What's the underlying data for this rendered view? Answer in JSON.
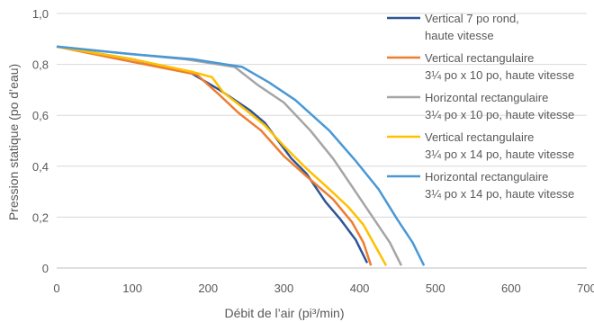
{
  "chart_data": {
    "type": "line",
    "xlabel": "Débit de l’air (pi³/min)",
    "ylabel": "Pression statique (po d’eau)",
    "xlim": [
      0,
      700
    ],
    "ylim": [
      0,
      1.0
    ],
    "x_ticks": [
      0,
      100,
      200,
      300,
      400,
      500,
      600,
      700
    ],
    "x_tick_labels": [
      "0",
      "100",
      "200",
      "300",
      "400",
      "500",
      "600",
      "700"
    ],
    "y_ticks": [
      0,
      0.2,
      0.4,
      0.6,
      0.8,
      1.0
    ],
    "y_tick_labels": [
      "0",
      "0,2",
      "0,4",
      "0,6",
      "0,8",
      "1,0"
    ],
    "grid": "horizontal",
    "legend_position": "right",
    "series": [
      {
        "name_lines": [
          "Vertical 7 po rond,",
          "haute vitesse"
        ],
        "color": "#2E5597",
        "points": [
          [
            0,
            0.87
          ],
          [
            100,
            0.82
          ],
          [
            175,
            0.77
          ],
          [
            215,
            0.7
          ],
          [
            255,
            0.62
          ],
          [
            275,
            0.57
          ],
          [
            290,
            0.51
          ],
          [
            310,
            0.43
          ],
          [
            330,
            0.37
          ],
          [
            355,
            0.26
          ],
          [
            375,
            0.19
          ],
          [
            395,
            0.11
          ],
          [
            410,
            0.02
          ]
        ]
      },
      {
        "name_lines": [
          "Vertical rectangulaire",
          "3¼ po x 10 po, haute vitesse"
        ],
        "color": "#ED7D31",
        "points": [
          [
            0,
            0.87
          ],
          [
            100,
            0.81
          ],
          [
            185,
            0.76
          ],
          [
            215,
            0.68
          ],
          [
            240,
            0.61
          ],
          [
            270,
            0.54
          ],
          [
            300,
            0.44
          ],
          [
            330,
            0.36
          ],
          [
            365,
            0.27
          ],
          [
            390,
            0.18
          ],
          [
            405,
            0.1
          ],
          [
            415,
            0.01
          ]
        ]
      },
      {
        "name_lines": [
          "Horizontal rectangulaire",
          "3¼ po x 10 po, haute vitesse"
        ],
        "color": "#A5A5A5",
        "points": [
          [
            0,
            0.87
          ],
          [
            100,
            0.84
          ],
          [
            170,
            0.82
          ],
          [
            235,
            0.79
          ],
          [
            265,
            0.72
          ],
          [
            300,
            0.65
          ],
          [
            335,
            0.54
          ],
          [
            365,
            0.43
          ],
          [
            390,
            0.32
          ],
          [
            415,
            0.21
          ],
          [
            440,
            0.1
          ],
          [
            455,
            0.01
          ]
        ]
      },
      {
        "name_lines": [
          "Vertical rectangulaire",
          "3¼ po x 14 po, haute vitesse"
        ],
        "color": "#FFC000",
        "points": [
          [
            0,
            0.87
          ],
          [
            100,
            0.82
          ],
          [
            180,
            0.77
          ],
          [
            205,
            0.75
          ],
          [
            220,
            0.69
          ],
          [
            250,
            0.62
          ],
          [
            275,
            0.56
          ],
          [
            300,
            0.48
          ],
          [
            330,
            0.39
          ],
          [
            360,
            0.31
          ],
          [
            385,
            0.24
          ],
          [
            405,
            0.17
          ],
          [
            420,
            0.09
          ],
          [
            435,
            0.01
          ]
        ]
      },
      {
        "name_lines": [
          "Horizontal rectangulaire",
          "3¼ po x 14 po, haute vitesse"
        ],
        "color": "#4A98D5",
        "points": [
          [
            0,
            0.87
          ],
          [
            100,
            0.84
          ],
          [
            180,
            0.82
          ],
          [
            245,
            0.79
          ],
          [
            280,
            0.73
          ],
          [
            315,
            0.66
          ],
          [
            360,
            0.54
          ],
          [
            395,
            0.42
          ],
          [
            425,
            0.31
          ],
          [
            450,
            0.19
          ],
          [
            470,
            0.1
          ],
          [
            485,
            0.01
          ]
        ]
      }
    ]
  }
}
